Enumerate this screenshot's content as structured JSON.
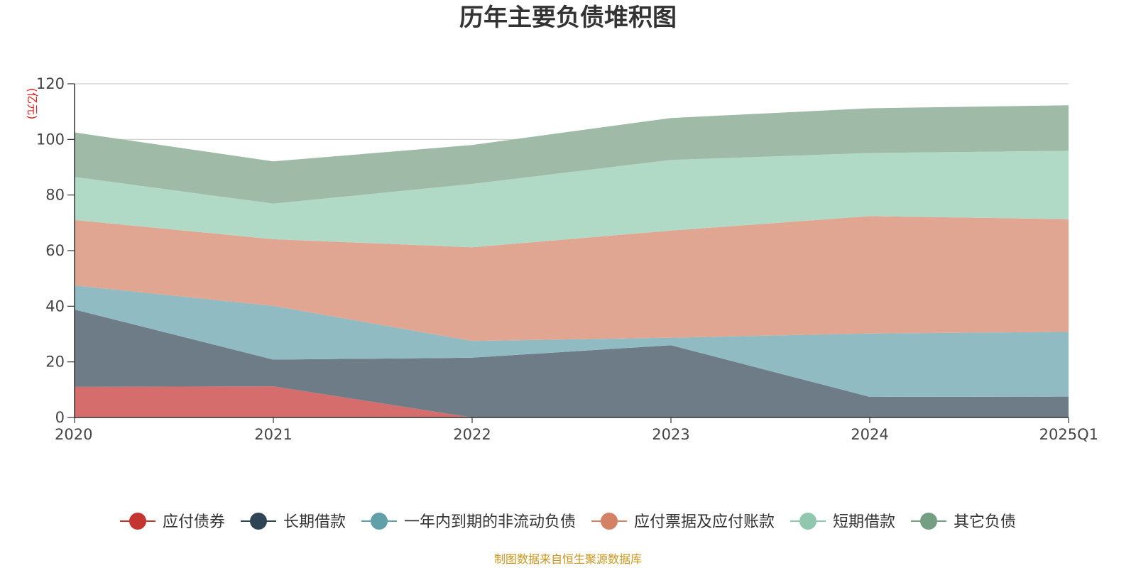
{
  "chart_data": {
    "type": "area",
    "stacked": true,
    "title": "历年主要负债堆积图",
    "unit": "(亿元)",
    "categories": [
      "2020",
      "2021",
      "2022",
      "2023",
      "2024",
      "2025Q1"
    ],
    "ylim": [
      0,
      120
    ],
    "yticks": [
      0,
      20,
      40,
      60,
      80,
      100,
      120
    ],
    "grid": true,
    "legend_position": "bottom",
    "series": [
      {
        "name": "应付债券",
        "color": "#c23531",
        "fill": "#d46d6b",
        "values": [
          11,
          11.2,
          0,
          0,
          0,
          0
        ]
      },
      {
        "name": "长期借款",
        "color": "#2f4554",
        "fill": "#6e7c87",
        "values": [
          27.8,
          9.6,
          21.5,
          26,
          7.4,
          7.5
        ]
      },
      {
        "name": "一年内到期的非流动负债",
        "color": "#61a0a8",
        "fill": "#90bbc2",
        "values": [
          8.7,
          19.3,
          6,
          2.7,
          22.8,
          23.3
        ]
      },
      {
        "name": "应付票据及应付账款",
        "color": "#d48265",
        "fill": "#e0a691",
        "values": [
          23.5,
          24,
          33.7,
          38.5,
          42.2,
          40.5
        ]
      },
      {
        "name": "短期借款",
        "color": "#91c7ae",
        "fill": "#b1dac6",
        "values": [
          15.5,
          12.8,
          22.8,
          25.4,
          22.7,
          24.6
        ]
      },
      {
        "name": "其它负债",
        "color": "#749f83",
        "fill": "#9fbaa7",
        "values": [
          16,
          15.2,
          14,
          15.1,
          16.1,
          16.4
        ]
      }
    ]
  },
  "source_note": "制图数据来自恒生聚源数据库"
}
